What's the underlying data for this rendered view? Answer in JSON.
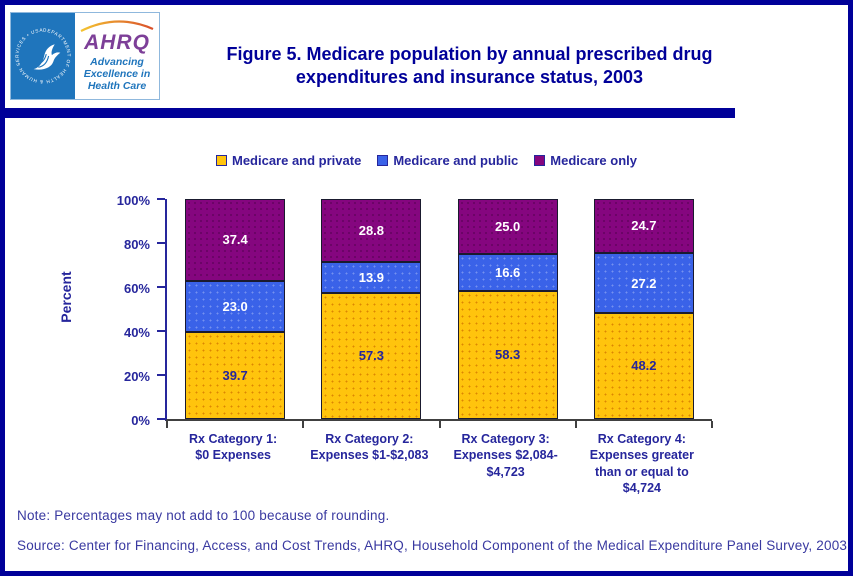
{
  "header": {
    "logo": {
      "hhs_ring_text": "DEPARTMENT OF HEALTH & HUMAN SERVICES • USA",
      "ahrq_acronym": "AHRQ",
      "tagline_line1": "Advancing",
      "tagline_line2": "Excellence in",
      "tagline_line3": "Health Care"
    },
    "title": "Figure 5. Medicare population by annual prescribed drug expenditures and insurance status, 2003"
  },
  "chart_data": {
    "type": "bar",
    "stacked": true,
    "title": "Figure 5. Medicare population by annual prescribed drug expenditures and insurance status, 2003",
    "xlabel": "",
    "ylabel": "Percent",
    "ylim": [
      0,
      100
    ],
    "yticks": [
      0,
      20,
      40,
      60,
      80,
      100
    ],
    "ytick_suffix": "%",
    "grid": false,
    "legend_position": "top",
    "categories": [
      "Rx Category 1: $0 Expenses",
      "Rx Category 2: Expenses $1-$2,083",
      "Rx Category 3: Expenses $2,084-$4,723",
      "Rx Category 4: Expenses greater than or equal to $4,724"
    ],
    "category_lines": [
      [
        "Rx Category 1:",
        "$0 Expenses"
      ],
      [
        "Rx Category 2:",
        "Expenses $1-$2,083"
      ],
      [
        "Rx Category 3:",
        "Expenses $2,084-",
        "$4,723"
      ],
      [
        "Rx Category 4:",
        "Expenses greater",
        "than or equal to",
        "$4,724"
      ]
    ],
    "series": [
      {
        "name": "Medicare and private",
        "color": "#FFC40D",
        "label_color": "#26269C",
        "values": [
          39.7,
          57.3,
          58.3,
          48.2
        ],
        "labels": [
          "39.7",
          "57.3",
          "58.3",
          "48.2"
        ]
      },
      {
        "name": "Medicare and public",
        "color": "#3A62E8",
        "label_color": "#FFFFFF",
        "values": [
          23.0,
          13.9,
          16.6,
          27.2
        ],
        "labels": [
          "23.0",
          "13.9",
          "16.6",
          "27.2"
        ]
      },
      {
        "name": "Medicare only",
        "color": "#85067F",
        "label_color": "#FFFFFF",
        "values": [
          37.4,
          28.8,
          25.0,
          24.7
        ],
        "labels": [
          "37.4",
          "28.8",
          "25.0",
          "24.7"
        ]
      }
    ]
  },
  "footer": {
    "note": "Note: Percentages may not add to 100 because of rounding.",
    "source": "Source: Center for Financing, Access, and Cost Trends, AHRQ, Household Component of the Medical Expenditure Panel Survey, 2003."
  },
  "colors": {
    "navy_text": "#26269C",
    "title_navy": "#000099",
    "divider_bar": "#000099",
    "page_border": "#000099",
    "hhs_blue": "#1F75BC",
    "ahrq_purple": "#7D3F98",
    "footer_text": "#3939A0",
    "bar_yellow": "#FFC40D",
    "bar_blue": "#3A62E8",
    "bar_purple": "#85067F"
  }
}
